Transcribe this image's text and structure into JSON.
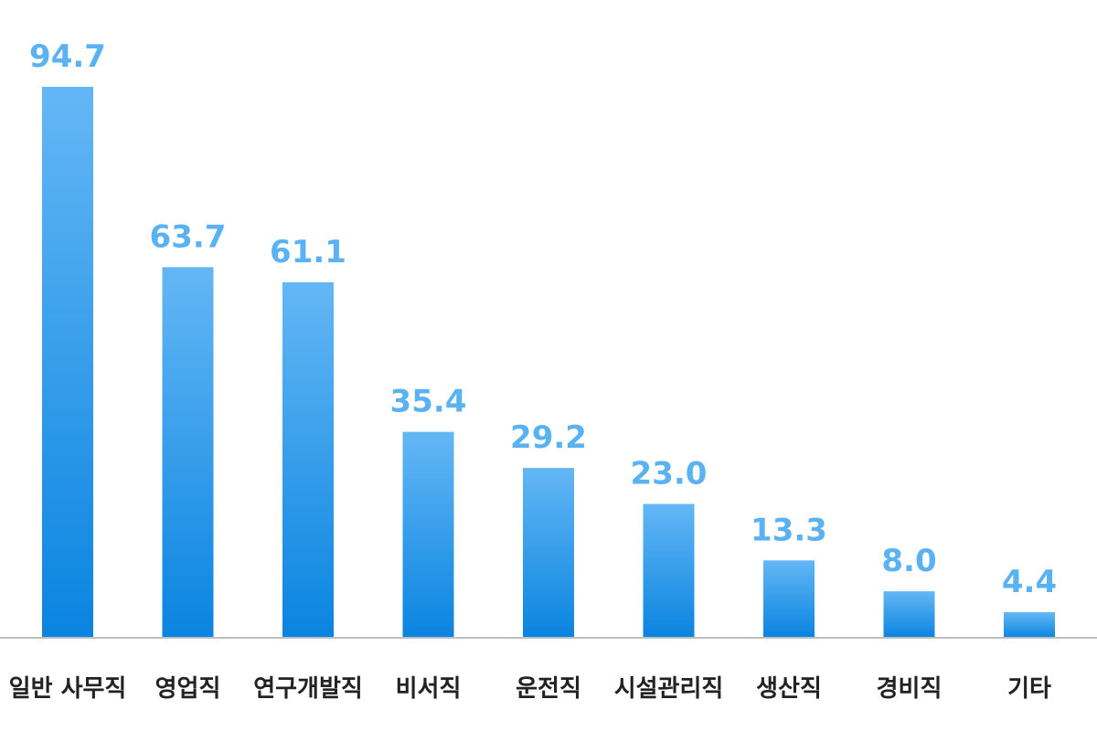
{
  "chart_data": {
    "type": "bar",
    "title": "",
    "xlabel": "",
    "ylabel": "",
    "categories": [
      "일반 사무직",
      "영업직",
      "연구개발직",
      "비서직",
      "운전직",
      "시설관리직",
      "생산직",
      "경비직",
      "기타"
    ],
    "values": [
      94.7,
      63.7,
      61.1,
      35.4,
      29.2,
      23.0,
      13.3,
      8.0,
      4.4
    ],
    "value_labels": [
      "94.7",
      "63.7",
      "61.1",
      "35.4",
      "29.2",
      "23.0",
      "13.3",
      "8.0",
      "4.4"
    ],
    "ylim": [
      0,
      94.7
    ],
    "grid": false,
    "legend": "none",
    "colors": {
      "bar_top": "#64B7F5",
      "bar_bottom": "#0A84E0",
      "value_label": "#5BB2F2",
      "baseline": "#BFBFBF",
      "category_label": "#222222"
    }
  }
}
